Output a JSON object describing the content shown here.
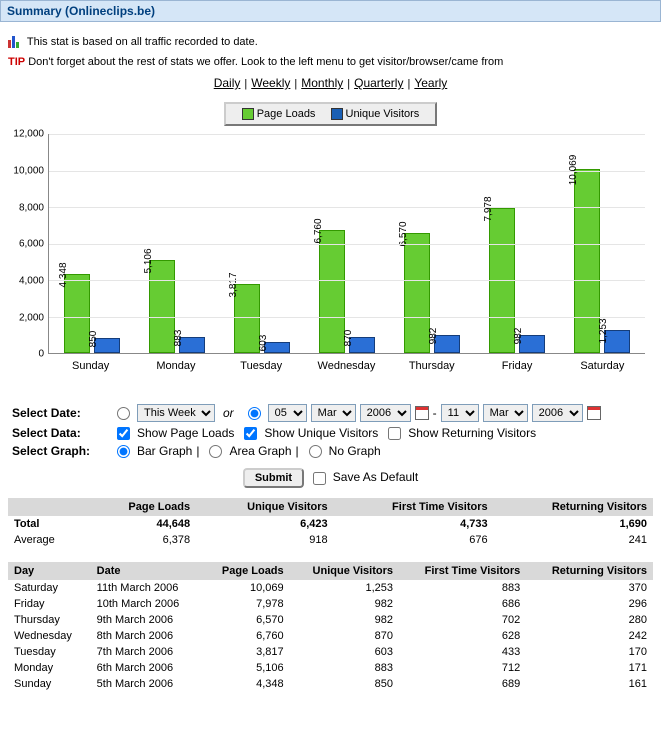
{
  "header_title": "Summary (Onlineclips.be)",
  "intro_text": "This stat is based on all traffic recorded to date.",
  "tip_label": "TIP",
  "tip_text": "Don't forget about the rest of stats we offer. Look to the left menu to get visitor/browser/came from",
  "period_links": [
    "Daily",
    "Weekly",
    "Monthly",
    "Quarterly",
    "Yearly"
  ],
  "legend": {
    "page_loads": {
      "label": "Page Loads",
      "color": "#66cc33"
    },
    "unique_visitors": {
      "label": "Unique Visitors",
      "color": "#1a5fb4"
    }
  },
  "chart": {
    "type": "bar",
    "ylim": [
      0,
      12000
    ],
    "ytick_step": 2000,
    "y_ticks": [
      "0",
      "2,000",
      "4,000",
      "6,000",
      "8,000",
      "10,000",
      "12,000"
    ],
    "bar_color_1": "#66cc33",
    "bar_border_1": "#339900",
    "bar_color_2": "#2a6fd6",
    "bar_border_2": "#153d7a",
    "grid_color": "#e5e5e5",
    "categories": [
      "Sunday",
      "Monday",
      "Tuesday",
      "Wednesday",
      "Thursday",
      "Friday",
      "Saturday"
    ],
    "series1_values": [
      4348,
      5106,
      3817,
      6760,
      6570,
      7978,
      10069
    ],
    "series1_labels": [
      "4,348",
      "5,106",
      "3,817",
      "6,760",
      "6,570",
      "7,978",
      "10,069"
    ],
    "series2_values": [
      850,
      883,
      603,
      870,
      982,
      982,
      1253
    ],
    "series2_labels": [
      "850",
      "883",
      "603",
      "870",
      "982",
      "982",
      "1,253"
    ]
  },
  "controls": {
    "select_date_label": "Select Date:",
    "select_data_label": "Select Data:",
    "select_graph_label": "Select Graph:",
    "this_week": "This Week",
    "or": "or",
    "day1": "05",
    "month1": "Mar",
    "year1": "2006",
    "dash": "-",
    "day2": "11",
    "month2": "Mar",
    "year2": "2006",
    "show_page_loads": "Show Page Loads",
    "show_unique": "Show Unique Visitors",
    "show_returning": "Show Returning Visitors",
    "bar_graph": "Bar Graph",
    "area_graph": "Area Graph",
    "no_graph": "No Graph",
    "pipe": " | ",
    "submit": "Submit",
    "save_default": "Save As Default"
  },
  "table1": {
    "headers": [
      "",
      "Page Loads",
      "Unique Visitors",
      "First Time Visitors",
      "Returning Visitors"
    ],
    "total_label": "Total",
    "total": [
      "44,648",
      "6,423",
      "4,733",
      "1,690"
    ],
    "avg_label": "Average",
    "avg": [
      "6,378",
      "918",
      "676",
      "241"
    ]
  },
  "table2": {
    "headers": [
      "Day",
      "Date",
      "Page Loads",
      "Unique Visitors",
      "First Time Visitors",
      "Returning Visitors"
    ],
    "rows": [
      [
        "Saturday",
        "11th March 2006",
        "10,069",
        "1,253",
        "883",
        "370"
      ],
      [
        "Friday",
        "10th March 2006",
        "7,978",
        "982",
        "686",
        "296"
      ],
      [
        "Thursday",
        "9th March 2006",
        "6,570",
        "982",
        "702",
        "280"
      ],
      [
        "Wednesday",
        "8th March 2006",
        "6,760",
        "870",
        "628",
        "242"
      ],
      [
        "Tuesday",
        "7th March 2006",
        "3,817",
        "603",
        "433",
        "170"
      ],
      [
        "Monday",
        "6th March 2006",
        "5,106",
        "883",
        "712",
        "171"
      ],
      [
        "Sunday",
        "5th March 2006",
        "4,348",
        "850",
        "689",
        "161"
      ]
    ]
  }
}
